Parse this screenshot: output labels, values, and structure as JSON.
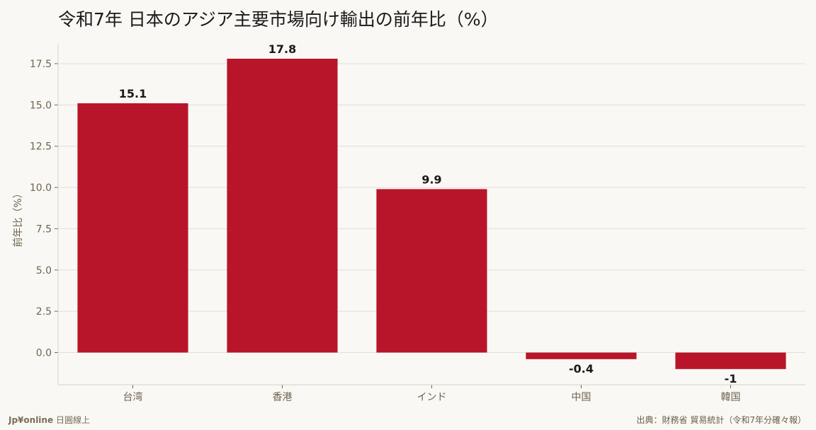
{
  "title": "令和7年 日本のアジア主要市場向け輸出の前年比（%）",
  "footer": {
    "brand": "Jp¥online",
    "brand_sub": "日圓線上",
    "source": "出典：財務省 貿易統計（令和7年分確々報）"
  },
  "colors": {
    "bar": "#b8152b",
    "grid": "#e2ded6",
    "axis": "#d6d2c8",
    "tick_text": "#6e6450",
    "label_text": "#1a1a1a"
  },
  "chart_data": {
    "type": "bar",
    "title": "令和7年 日本のアジア主要市場向け輸出の前年比（%）",
    "xlabel": "",
    "ylabel": "前年比（%）",
    "categories": [
      "台湾",
      "香港",
      "インド",
      "中国",
      "韓国"
    ],
    "values": [
      15.1,
      17.8,
      9.9,
      -0.4,
      -1
    ],
    "value_labels": [
      "15.1",
      "17.8",
      "9.9",
      "-0.4",
      "-1"
    ],
    "yticks": [
      "0.0",
      "2.5",
      "5.0",
      "7.5",
      "10.0",
      "12.5",
      "15.0",
      "17.5"
    ],
    "ylim": [
      -1.95,
      18.7
    ],
    "grid": true,
    "legend": "none"
  }
}
